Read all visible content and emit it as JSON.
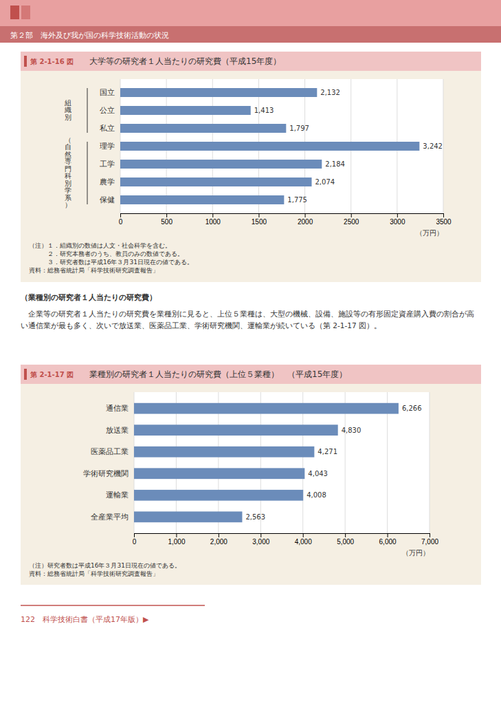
{
  "page": {
    "header": "第２部　海外及び我が国の科学技術活動の状況",
    "heading": "（業種別の研究者１人当たりの研究費）",
    "body": "　企業等の研究者１人当たりの研究費を業種別に見ると、上位５業種は、大型の機械、設備、施設等の有形固定資産購入費の割合が高い通信業が最も多く、次いで放送業、医薬品工業、学術研究機関、運輸業が続いている（第 2-1-17 図）。",
    "footer": "122　科学技術白書（平成17年版）▶"
  },
  "chart_data": [
    {
      "type": "bar",
      "orientation": "horizontal",
      "subtitle": "第 2-1-16 図",
      "title": "大学等の研究者１人当たりの研究費（平成15年度）",
      "categories": [
        "国立",
        "公立",
        "私立",
        "理学",
        "工学",
        "農学",
        "保健"
      ],
      "values": [
        2132,
        1413,
        1797,
        3242,
        2184,
        2074,
        1775
      ],
      "value_labels": [
        "2,132",
        "1,413",
        "1,797",
        "3,242",
        "2,184",
        "2,074",
        "1,775"
      ],
      "data_labels": true,
      "color": "#6b8cba",
      "xlim": [
        0,
        3500
      ],
      "xticks": [
        0,
        500,
        1000,
        1500,
        2000,
        2500,
        3000,
        3500
      ],
      "xlabel": "（万円）",
      "grid": true,
      "annotations": [
        {
          "text": "組\n織\n別",
          "categories": [
            "国立",
            "公立",
            "私立"
          ]
        },
        {
          "text": "（\n自\n然\n専\n門\n科\n別\n学\n系\n）",
          "categories": [
            "理学",
            "工学",
            "農学",
            "保健"
          ]
        },
        {
          "text": "（注）１．組織別の数値は人文・社会科学を含む。"
        },
        {
          "text": "　　　２．研究本務者のうち、教員のみの数値である。"
        },
        {
          "text": "　　　３．研究者数は平成16年３月31日現在の値である。"
        },
        {
          "text": "資料：総務省統計局「科学技術研究調査報告」"
        }
      ]
    },
    {
      "type": "bar",
      "orientation": "horizontal",
      "subtitle": "第 2-1-17 図",
      "title": "業種別の研究者１人当たりの研究費（上位５業種）　（平成15年度）",
      "categories": [
        "通信業",
        "放送業",
        "医薬品工業",
        "学術研究機関",
        "運輸業",
        "全産業平均"
      ],
      "values": [
        6266,
        4830,
        4271,
        4043,
        4008,
        2563
      ],
      "value_labels": [
        "6,266",
        "4,830",
        "4,271",
        "4,043",
        "4,008",
        "2,563"
      ],
      "data_labels": true,
      "color": "#6b8cba",
      "xlim": [
        0,
        7000
      ],
      "xticks": [
        0,
        {
          "value": 1000,
          "label": "1,000"
        },
        {
          "value": 2000,
          "label": "2,000"
        },
        {
          "value": 3000,
          "label": "3,000"
        },
        {
          "value": 4000,
          "label": "4,000"
        },
        {
          "value": 5000,
          "label": "5,000"
        },
        {
          "value": 6000,
          "label": "6,000"
        },
        {
          "value": 7000,
          "label": "7,000"
        }
      ],
      "xlabel": "（万円）",
      "grid": true,
      "annotations": [
        {
          "text": "（注）研究者数は平成16年３月31日現在の値である。"
        },
        {
          "text": "資料：総務省統計局「科学技術研究調査報告」"
        }
      ]
    }
  ]
}
